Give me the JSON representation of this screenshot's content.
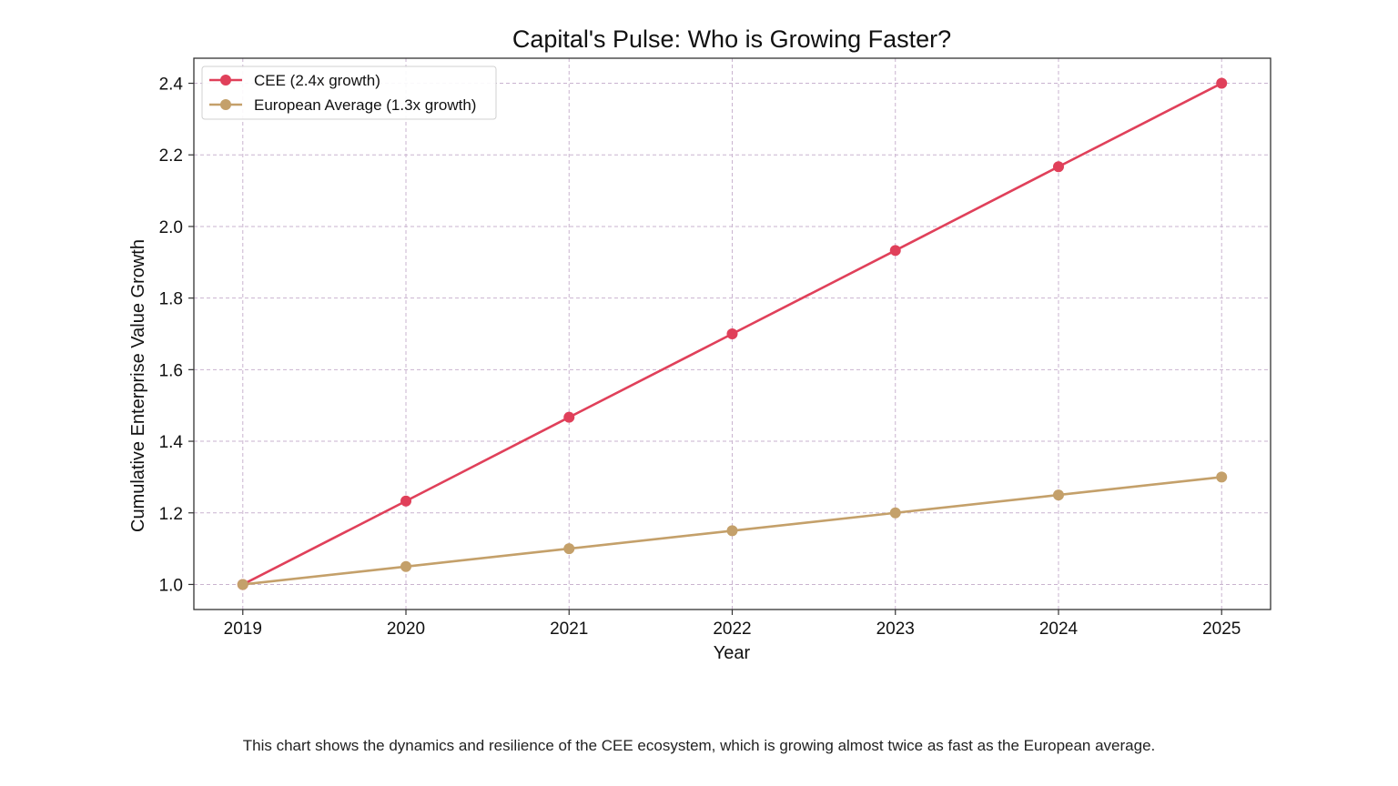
{
  "caption": "This chart shows the dynamics and resilience of the CEE ecosystem, which is growing almost twice as fast as the European average.",
  "chart_data": {
    "type": "line",
    "title": "Capital's Pulse: Who is Growing Faster?",
    "xlabel": "Year",
    "ylabel": "Cumulative Enterprise Value Growth",
    "x": [
      2019,
      2020,
      2021,
      2022,
      2023,
      2024,
      2025
    ],
    "xlim": [
      2018.7,
      2025.3
    ],
    "ylim": [
      0.93,
      2.47
    ],
    "yticks": [
      1.0,
      1.2,
      1.4,
      1.6,
      1.8,
      2.0,
      2.2,
      2.4
    ],
    "yticks_labels": [
      "1.0",
      "1.2",
      "1.4",
      "1.6",
      "1.8",
      "2.0",
      "2.2",
      "2.4"
    ],
    "grid": true,
    "legend_position": "top-left",
    "series": [
      {
        "name": "CEE (2.4x growth)",
        "color": "#e0405a",
        "values": [
          1.0,
          1.233,
          1.467,
          1.7,
          1.933,
          2.167,
          2.4
        ]
      },
      {
        "name": "European Average (1.3x growth)",
        "color": "#c4a06a",
        "values": [
          1.0,
          1.05,
          1.1,
          1.15,
          1.2,
          1.25,
          1.3
        ]
      }
    ]
  }
}
